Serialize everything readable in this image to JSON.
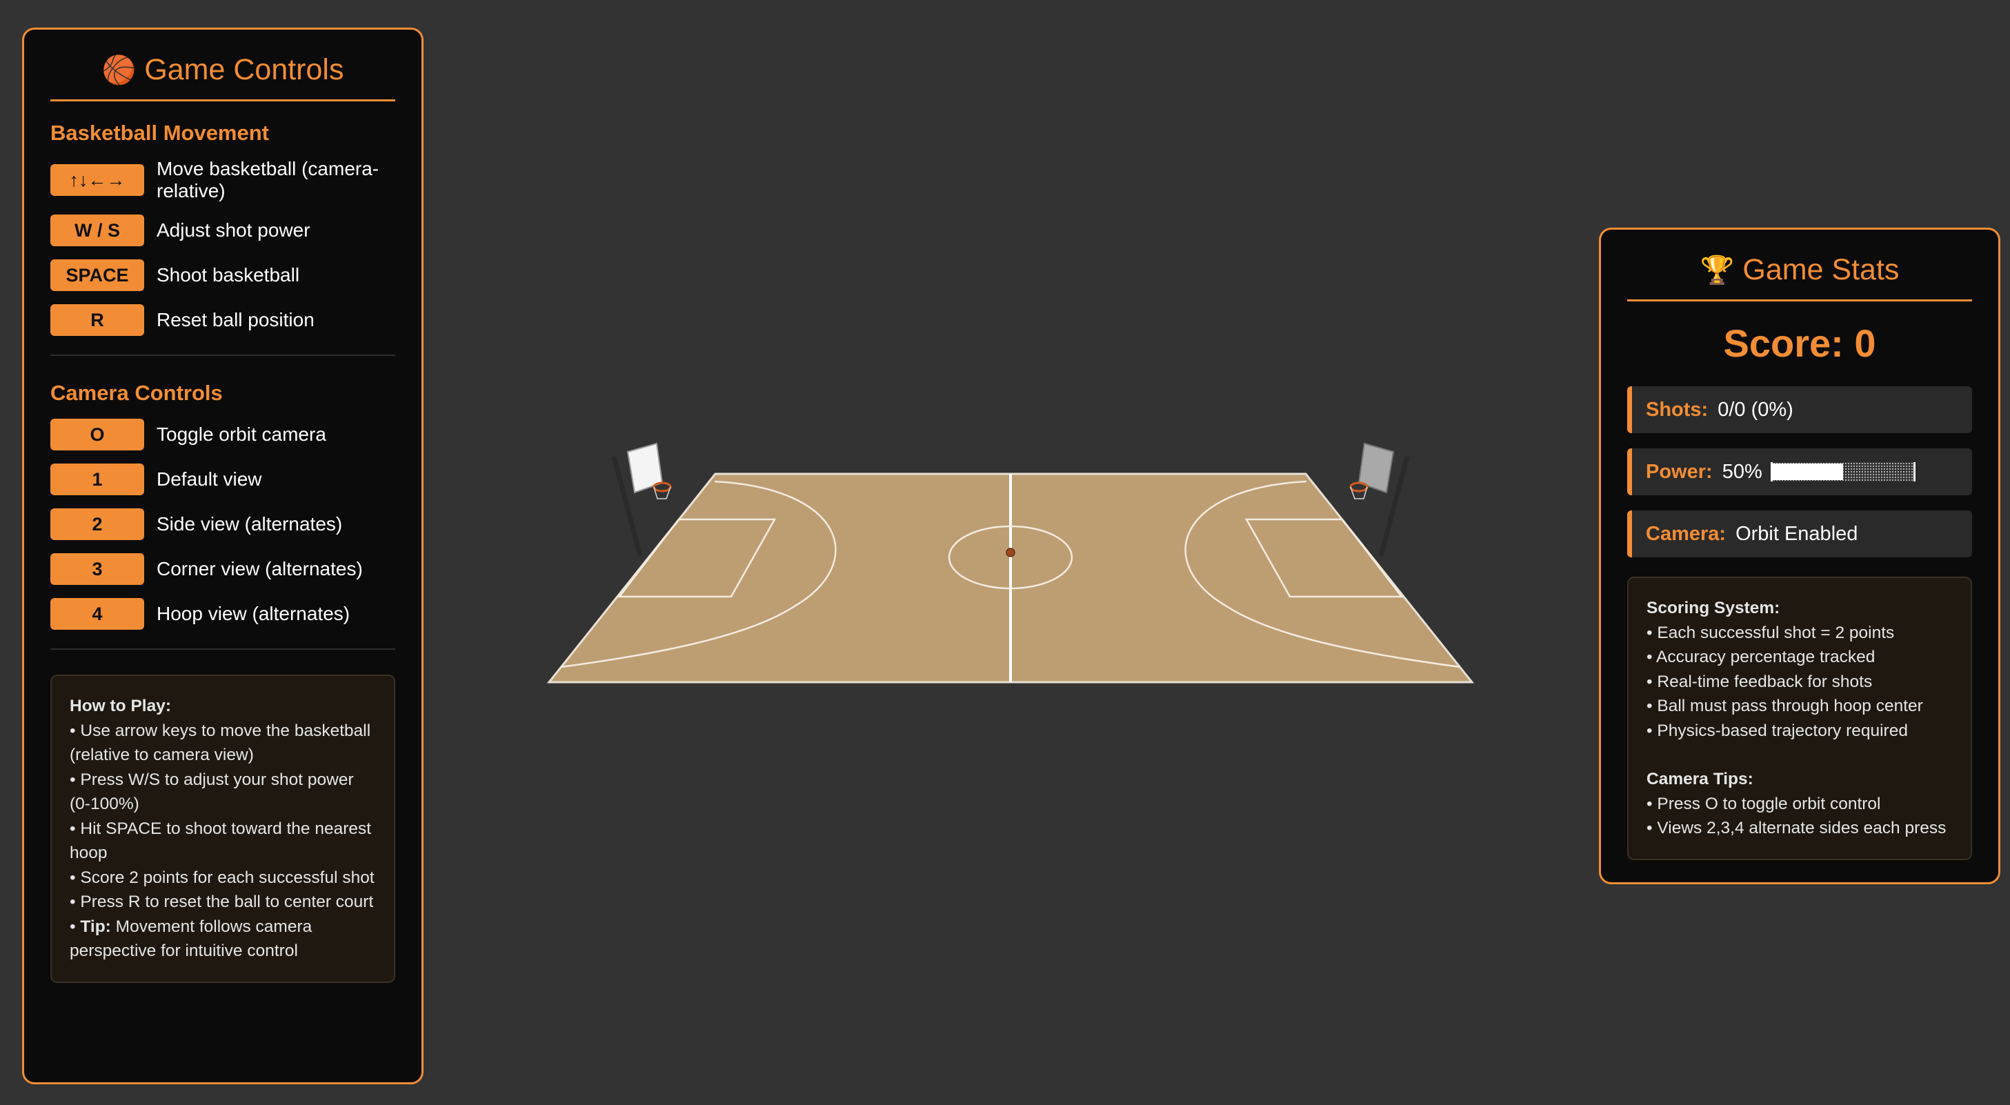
{
  "controls": {
    "title": "Game Controls",
    "title_icon": "basketball-icon",
    "movement": {
      "title": "Basketball Movement",
      "items": [
        {
          "key": "↑↓←→",
          "desc": "Move basketball (camera-relative)"
        },
        {
          "key": "W / S",
          "desc": "Adjust shot power"
        },
        {
          "key": "SPACE",
          "desc": "Shoot basketball"
        },
        {
          "key": "R",
          "desc": "Reset ball position"
        }
      ]
    },
    "camera": {
      "title": "Camera Controls",
      "items": [
        {
          "key": "O",
          "desc": "Toggle orbit camera"
        },
        {
          "key": "1",
          "desc": "Default view"
        },
        {
          "key": "2",
          "desc": "Side view (alternates)"
        },
        {
          "key": "3",
          "desc": "Corner view (alternates)"
        },
        {
          "key": "4",
          "desc": "Hoop view (alternates)"
        }
      ]
    },
    "how_to_play": {
      "title": "How to Play:",
      "lines": [
        "• Use arrow keys to move the basketball (relative to camera view)",
        "• Press W/S to adjust your shot power (0-100%)",
        "• Hit SPACE to shoot toward the nearest hoop",
        "• Score 2 points for each successful shot",
        "• Press R to reset the ball to center court"
      ],
      "tip_label": "Tip:",
      "tip_text": " Movement follows camera perspective for intuitive control"
    }
  },
  "stats": {
    "title": "Game Stats",
    "title_icon": "trophy-icon",
    "score": "Score: 0",
    "shots_label": "Shots:",
    "shots_value": "0/0 (0%)",
    "power_label": "Power:",
    "power_value": "50%",
    "power_fraction": 0.5,
    "camera_label": "Camera:",
    "camera_value": "Orbit Enabled",
    "scoring": {
      "title": "Scoring System:",
      "lines": [
        "• Each successful shot = 2 points",
        "• Accuracy percentage tracked",
        "• Real-time feedback for shots",
        "• Ball must pass through hoop center",
        "• Physics-based trajectory required"
      ]
    },
    "camera_tips": {
      "title": "Camera Tips:",
      "lines": [
        "• Press O to toggle orbit control",
        "• Views 2,3,4 alternate sides each press"
      ]
    }
  },
  "colors": {
    "background": "#333333",
    "accent": "#f28d35",
    "panel": "#0b0b0b",
    "court": "#bd9d72"
  }
}
